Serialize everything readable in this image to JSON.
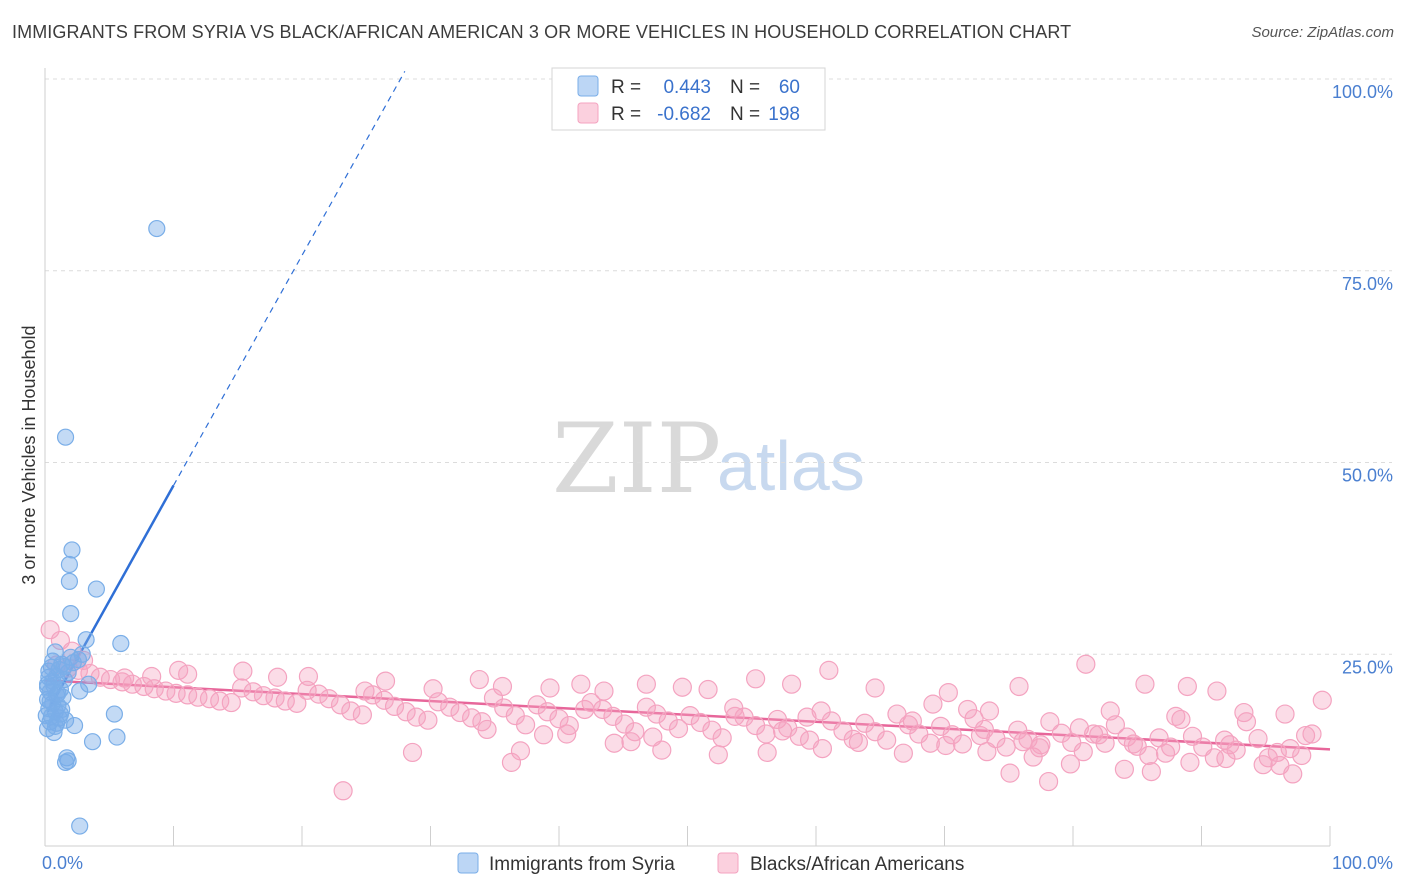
{
  "title": "IMMIGRANTS FROM SYRIA VS BLACK/AFRICAN AMERICAN 3 OR MORE VEHICLES IN HOUSEHOLD CORRELATION CHART",
  "source": "Source: ZipAtlas.com",
  "watermark": {
    "zip": "ZIP",
    "atlas": "atlas"
  },
  "legend": {
    "r_label": "R =",
    "n_label": "N =",
    "rows": [
      {
        "r": "0.443",
        "n": "60"
      },
      {
        "r": "-0.682",
        "n": "198"
      }
    ]
  },
  "chart_data": {
    "type": "scatter",
    "title": "IMMIGRANTS FROM SYRIA VS BLACK/AFRICAN AMERICAN 3 OR MORE VEHICLES IN HOUSEHOLD CORRELATION CHART",
    "xlabel": "",
    "ylabel": "3 or more Vehicles in Household",
    "xlim": [
      0,
      100
    ],
    "ylim": [
      0,
      100
    ],
    "x_tick_labels": [
      "0.0%",
      "100.0%"
    ],
    "y_ticks": [
      25,
      50,
      75,
      100
    ],
    "y_tick_labels": [
      "25.0%",
      "50.0%",
      "75.0%",
      "100.0%"
    ],
    "grid": true,
    "series": [
      {
        "name": "Immigrants from Syria",
        "color": "#7aaee8",
        "line_color": "#2f6fd6",
        "r": 0.443,
        "n": 60,
        "trend": {
          "x0": 0.2,
          "y0": 17.5,
          "x1": 10,
          "y1": 47,
          "dashed_to_x": 28,
          "dashed_to_y": 101
        },
        "points": [
          [
            8.7,
            80.5
          ],
          [
            1.6,
            53.3
          ],
          [
            2.1,
            38.6
          ],
          [
            1.9,
            36.7
          ],
          [
            1.9,
            34.5
          ],
          [
            4.0,
            33.5
          ],
          [
            2.0,
            30.3
          ],
          [
            3.2,
            26.9
          ],
          [
            5.9,
            26.4
          ],
          [
            0.8,
            25.3
          ],
          [
            0.6,
            24.1
          ],
          [
            1.3,
            23.7
          ],
          [
            2.0,
            24.6
          ],
          [
            2.6,
            24.3
          ],
          [
            0.5,
            23.3
          ],
          [
            1.1,
            23.0
          ],
          [
            1.8,
            22.6
          ],
          [
            0.3,
            22.0
          ],
          [
            0.9,
            22.1
          ],
          [
            1.5,
            21.7
          ],
          [
            3.4,
            21.1
          ],
          [
            0.2,
            21.1
          ],
          [
            0.7,
            20.9
          ],
          [
            1.2,
            20.4
          ],
          [
            0.4,
            20.1
          ],
          [
            0.9,
            19.7
          ],
          [
            1.4,
            19.4
          ],
          [
            2.7,
            20.2
          ],
          [
            0.2,
            19.1
          ],
          [
            0.6,
            18.6
          ],
          [
            1.0,
            18.3
          ],
          [
            0.3,
            17.9
          ],
          [
            0.8,
            17.5
          ],
          [
            1.3,
            17.8
          ],
          [
            0.1,
            17.0
          ],
          [
            0.5,
            16.9
          ],
          [
            1.1,
            16.7
          ],
          [
            0.4,
            16.2
          ],
          [
            0.9,
            16.0
          ],
          [
            1.6,
            16.4
          ],
          [
            2.3,
            15.7
          ],
          [
            0.2,
            15.3
          ],
          [
            0.7,
            14.8
          ],
          [
            5.4,
            17.2
          ],
          [
            5.6,
            14.2
          ],
          [
            3.7,
            13.6
          ],
          [
            1.7,
            11.5
          ],
          [
            1.8,
            11.1
          ],
          [
            1.6,
            10.9
          ],
          [
            2.7,
            2.6
          ],
          [
            0.3,
            22.8
          ],
          [
            0.6,
            21.5
          ],
          [
            1.0,
            19.9
          ],
          [
            1.5,
            23.4
          ],
          [
            2.2,
            23.9
          ],
          [
            0.4,
            18.9
          ],
          [
            1.2,
            17.2
          ],
          [
            0.8,
            15.6
          ],
          [
            2.9,
            25.0
          ],
          [
            0.2,
            20.7
          ]
        ]
      },
      {
        "name": "Blacks/African Americans",
        "color": "#f4a3c0",
        "line_color": "#e7669a",
        "r": -0.682,
        "n": 198,
        "trend": {
          "x0": 0,
          "y0": 21.6,
          "x1": 100,
          "y1": 12.6
        },
        "points": [
          [
            0.4,
            28.2
          ],
          [
            1.2,
            26.8
          ],
          [
            2.1,
            25.4
          ],
          [
            3.0,
            24.2
          ],
          [
            0.9,
            23.6
          ],
          [
            1.8,
            23.2
          ],
          [
            2.6,
            22.9
          ],
          [
            3.5,
            22.5
          ],
          [
            4.3,
            22.0
          ],
          [
            5.1,
            21.7
          ],
          [
            6.0,
            21.4
          ],
          [
            6.8,
            21.1
          ],
          [
            7.7,
            20.8
          ],
          [
            8.5,
            20.5
          ],
          [
            9.4,
            20.2
          ],
          [
            10.2,
            19.9
          ],
          [
            11.1,
            19.7
          ],
          [
            11.9,
            19.4
          ],
          [
            12.8,
            19.2
          ],
          [
            13.6,
            18.9
          ],
          [
            14.5,
            18.7
          ],
          [
            15.3,
            20.6
          ],
          [
            16.2,
            20.1
          ],
          [
            17.0,
            19.6
          ],
          [
            17.9,
            19.3
          ],
          [
            18.7,
            18.9
          ],
          [
            19.6,
            18.6
          ],
          [
            20.4,
            20.3
          ],
          [
            21.3,
            19.8
          ],
          [
            22.1,
            19.2
          ],
          [
            23.0,
            18.4
          ],
          [
            23.8,
            17.6
          ],
          [
            24.7,
            17.1
          ],
          [
            25.5,
            19.7
          ],
          [
            26.4,
            19.0
          ],
          [
            27.2,
            18.2
          ],
          [
            28.1,
            17.5
          ],
          [
            28.9,
            16.8
          ],
          [
            29.8,
            16.4
          ],
          [
            30.6,
            18.8
          ],
          [
            31.5,
            18.1
          ],
          [
            32.3,
            17.4
          ],
          [
            33.2,
            16.7
          ],
          [
            34.0,
            16.2
          ],
          [
            34.9,
            19.3
          ],
          [
            35.7,
            18.0
          ],
          [
            36.6,
            17.0
          ],
          [
            37.4,
            15.8
          ],
          [
            38.3,
            18.4
          ],
          [
            39.1,
            17.5
          ],
          [
            40.0,
            16.6
          ],
          [
            40.8,
            15.7
          ],
          [
            41.7,
            21.1
          ],
          [
            42.5,
            18.7
          ],
          [
            43.4,
            17.8
          ],
          [
            44.2,
            16.9
          ],
          [
            45.1,
            15.9
          ],
          [
            45.9,
            14.9
          ],
          [
            46.8,
            18.1
          ],
          [
            47.6,
            17.2
          ],
          [
            48.5,
            16.3
          ],
          [
            49.3,
            15.3
          ],
          [
            50.2,
            17.0
          ],
          [
            51.0,
            16.1
          ],
          [
            51.9,
            15.1
          ],
          [
            52.7,
            14.1
          ],
          [
            53.6,
            18.0
          ],
          [
            54.4,
            16.8
          ],
          [
            55.3,
            15.7
          ],
          [
            56.1,
            14.6
          ],
          [
            57.0,
            16.5
          ],
          [
            57.8,
            15.4
          ],
          [
            58.7,
            14.3
          ],
          [
            59.5,
            13.8
          ],
          [
            60.4,
            17.6
          ],
          [
            61.2,
            16.3
          ],
          [
            62.1,
            15.0
          ],
          [
            62.9,
            13.9
          ],
          [
            63.8,
            16.0
          ],
          [
            64.6,
            14.9
          ],
          [
            65.5,
            13.8
          ],
          [
            66.3,
            17.2
          ],
          [
            67.2,
            15.8
          ],
          [
            68.0,
            14.6
          ],
          [
            68.9,
            13.4
          ],
          [
            69.7,
            15.6
          ],
          [
            70.6,
            14.5
          ],
          [
            71.4,
            13.3
          ],
          [
            72.3,
            16.6
          ],
          [
            73.1,
            15.2
          ],
          [
            74.0,
            14.0
          ],
          [
            74.8,
            12.9
          ],
          [
            75.7,
            15.1
          ],
          [
            76.5,
            13.9
          ],
          [
            77.4,
            12.8
          ],
          [
            78.2,
            16.2
          ],
          [
            79.1,
            14.7
          ],
          [
            79.9,
            13.5
          ],
          [
            80.8,
            12.3
          ],
          [
            81.6,
            14.6
          ],
          [
            82.5,
            13.4
          ],
          [
            83.3,
            15.8
          ],
          [
            84.2,
            14.2
          ],
          [
            85.0,
            13.0
          ],
          [
            85.9,
            11.8
          ],
          [
            86.7,
            14.1
          ],
          [
            87.6,
            12.9
          ],
          [
            88.4,
            16.5
          ],
          [
            89.3,
            14.3
          ],
          [
            90.1,
            12.9
          ],
          [
            91.0,
            11.5
          ],
          [
            91.8,
            13.8
          ],
          [
            92.7,
            12.5
          ],
          [
            93.5,
            16.2
          ],
          [
            94.4,
            14.0
          ],
          [
            95.2,
            11.5
          ],
          [
            96.1,
            10.5
          ],
          [
            96.9,
            12.7
          ],
          [
            97.8,
            11.8
          ],
          [
            98.6,
            14.6
          ],
          [
            99.4,
            19.0
          ],
          [
            33.8,
            21.7
          ],
          [
            39.3,
            20.6
          ],
          [
            43.5,
            20.2
          ],
          [
            46.8,
            21.1
          ],
          [
            51.6,
            20.4
          ],
          [
            55.3,
            21.8
          ],
          [
            58.1,
            21.1
          ],
          [
            61.0,
            22.9
          ],
          [
            64.6,
            20.6
          ],
          [
            70.3,
            20.0
          ],
          [
            75.8,
            20.8
          ],
          [
            81.0,
            23.7
          ],
          [
            85.6,
            21.1
          ],
          [
            88.9,
            20.8
          ],
          [
            91.2,
            20.2
          ],
          [
            26.5,
            21.5
          ],
          [
            20.5,
            22.1
          ],
          [
            15.4,
            22.8
          ],
          [
            11.1,
            22.4
          ],
          [
            8.3,
            22.1
          ],
          [
            6.2,
            21.9
          ],
          [
            28.6,
            12.2
          ],
          [
            37.0,
            12.4
          ],
          [
            40.6,
            14.6
          ],
          [
            44.3,
            13.4
          ],
          [
            48.0,
            12.5
          ],
          [
            52.4,
            11.9
          ],
          [
            56.2,
            12.2
          ],
          [
            60.5,
            12.7
          ],
          [
            63.3,
            13.5
          ],
          [
            66.8,
            12.1
          ],
          [
            70.1,
            13.1
          ],
          [
            73.3,
            12.3
          ],
          [
            76.9,
            11.6
          ],
          [
            79.8,
            10.7
          ],
          [
            84.0,
            10.0
          ],
          [
            86.1,
            9.7
          ],
          [
            89.1,
            10.9
          ],
          [
            91.9,
            11.4
          ],
          [
            94.8,
            10.6
          ],
          [
            97.1,
            9.4
          ],
          [
            75.1,
            9.5
          ],
          [
            78.1,
            8.4
          ],
          [
            23.2,
            7.2
          ],
          [
            36.3,
            10.9
          ],
          [
            57.4,
            15.0
          ],
          [
            67.5,
            16.3
          ],
          [
            71.8,
            17.8
          ],
          [
            35.6,
            20.8
          ],
          [
            49.6,
            20.7
          ],
          [
            53.7,
            16.9
          ],
          [
            59.3,
            16.8
          ],
          [
            69.1,
            18.5
          ],
          [
            73.5,
            17.6
          ],
          [
            82.9,
            17.6
          ],
          [
            88.0,
            16.9
          ],
          [
            93.3,
            17.4
          ],
          [
            96.5,
            17.2
          ],
          [
            98.1,
            14.4
          ],
          [
            95.9,
            12.2
          ],
          [
            92.2,
            13.2
          ],
          [
            87.2,
            12.1
          ],
          [
            84.7,
            13.3
          ],
          [
            82.0,
            14.5
          ],
          [
            80.5,
            15.4
          ],
          [
            77.5,
            13.2
          ],
          [
            76.1,
            13.6
          ],
          [
            72.8,
            14.4
          ],
          [
            10.4,
            22.9
          ],
          [
            18.1,
            22.0
          ],
          [
            24.9,
            20.2
          ],
          [
            30.2,
            20.5
          ],
          [
            34.4,
            15.2
          ],
          [
            38.8,
            14.5
          ],
          [
            42.0,
            17.8
          ],
          [
            45.6,
            13.6
          ],
          [
            47.3,
            14.2
          ]
        ]
      }
    ]
  }
}
